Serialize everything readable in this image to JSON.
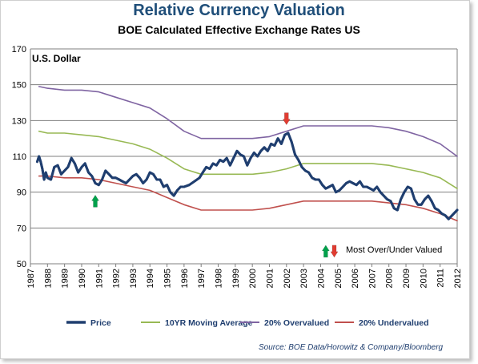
{
  "chart_data": {
    "type": "line",
    "title": "Relative Currency Valuation",
    "subtitle": "BOE Calculated Effective Exchange Rates US",
    "series_label": "U.S. Dollar",
    "ylim": [
      50,
      170
    ],
    "xlim": [
      1987,
      2012
    ],
    "y_ticks": [
      50,
      70,
      90,
      110,
      130,
      150,
      170
    ],
    "x_ticks": [
      "1987",
      "1988",
      "1989",
      "1990",
      "1991",
      "1992",
      "1993",
      "1994",
      "1995",
      "1996",
      "1997",
      "1998",
      "1999",
      "2000",
      "2001",
      "2002",
      "2003",
      "2004",
      "2005",
      "2006",
      "2007",
      "2008",
      "2009",
      "2010",
      "2011",
      "2012"
    ],
    "grid": "horizontal",
    "legend_position": "bottom",
    "series": [
      {
        "name": "Price",
        "color": "#1f3e6f",
        "points": [
          [
            1987.4,
            107
          ],
          [
            1987.5,
            110
          ],
          [
            1987.6,
            107
          ],
          [
            1987.7,
            103
          ],
          [
            1987.8,
            97
          ],
          [
            1987.9,
            101
          ],
          [
            1988.0,
            98
          ],
          [
            1988.2,
            97
          ],
          [
            1988.4,
            104
          ],
          [
            1988.6,
            105
          ],
          [
            1988.8,
            100
          ],
          [
            1989.0,
            102
          ],
          [
            1989.2,
            104
          ],
          [
            1989.4,
            109
          ],
          [
            1989.6,
            106
          ],
          [
            1989.8,
            101
          ],
          [
            1990.0,
            104
          ],
          [
            1990.2,
            106
          ],
          [
            1990.4,
            101
          ],
          [
            1990.6,
            99
          ],
          [
            1990.8,
            95
          ],
          [
            1991.0,
            94
          ],
          [
            1991.2,
            97
          ],
          [
            1991.4,
            102
          ],
          [
            1991.6,
            100
          ],
          [
            1991.8,
            98
          ],
          [
            1992.0,
            98
          ],
          [
            1992.2,
            97
          ],
          [
            1992.4,
            96
          ],
          [
            1992.6,
            95
          ],
          [
            1992.8,
            97
          ],
          [
            1993.0,
            99
          ],
          [
            1993.2,
            100
          ],
          [
            1993.4,
            98
          ],
          [
            1993.6,
            95
          ],
          [
            1993.8,
            97
          ],
          [
            1994.0,
            101
          ],
          [
            1994.2,
            100
          ],
          [
            1994.4,
            97
          ],
          [
            1994.6,
            97
          ],
          [
            1994.8,
            93
          ],
          [
            1995.0,
            94
          ],
          [
            1995.2,
            90
          ],
          [
            1995.4,
            88
          ],
          [
            1995.6,
            91
          ],
          [
            1995.8,
            93
          ],
          [
            1996.0,
            93
          ],
          [
            1996.3,
            94
          ],
          [
            1996.6,
            96
          ],
          [
            1996.9,
            98
          ],
          [
            1997.1,
            101
          ],
          [
            1997.3,
            104
          ],
          [
            1997.5,
            103
          ],
          [
            1997.7,
            106
          ],
          [
            1997.9,
            105
          ],
          [
            1998.1,
            108
          ],
          [
            1998.3,
            107
          ],
          [
            1998.5,
            109
          ],
          [
            1998.7,
            105
          ],
          [
            1998.9,
            109
          ],
          [
            1999.1,
            113
          ],
          [
            1999.3,
            111
          ],
          [
            1999.5,
            110
          ],
          [
            1999.7,
            105
          ],
          [
            1999.9,
            109
          ],
          [
            2000.1,
            112
          ],
          [
            2000.3,
            110
          ],
          [
            2000.5,
            113
          ],
          [
            2000.7,
            115
          ],
          [
            2000.9,
            113
          ],
          [
            2001.1,
            117
          ],
          [
            2001.3,
            116
          ],
          [
            2001.5,
            120
          ],
          [
            2001.7,
            117
          ],
          [
            2001.9,
            122
          ],
          [
            2002.1,
            123
          ],
          [
            2002.3,
            118
          ],
          [
            2002.5,
            111
          ],
          [
            2002.7,
            108
          ],
          [
            2002.9,
            104
          ],
          [
            2003.1,
            102
          ],
          [
            2003.3,
            101
          ],
          [
            2003.5,
            98
          ],
          [
            2003.7,
            97
          ],
          [
            2003.9,
            97
          ],
          [
            2004.1,
            94
          ],
          [
            2004.3,
            92
          ],
          [
            2004.5,
            93
          ],
          [
            2004.7,
            94
          ],
          [
            2004.9,
            90
          ],
          [
            2005.1,
            91
          ],
          [
            2005.3,
            93
          ],
          [
            2005.5,
            95
          ],
          [
            2005.7,
            96
          ],
          [
            2005.9,
            95
          ],
          [
            2006.1,
            94
          ],
          [
            2006.3,
            96
          ],
          [
            2006.5,
            93
          ],
          [
            2006.7,
            93
          ],
          [
            2006.9,
            92
          ],
          [
            2007.1,
            91
          ],
          [
            2007.3,
            93
          ],
          [
            2007.5,
            90
          ],
          [
            2007.7,
            88
          ],
          [
            2007.9,
            86
          ],
          [
            2008.1,
            85
          ],
          [
            2008.3,
            81
          ],
          [
            2008.5,
            80
          ],
          [
            2008.7,
            86
          ],
          [
            2008.9,
            90
          ],
          [
            2009.1,
            93
          ],
          [
            2009.3,
            92
          ],
          [
            2009.5,
            86
          ],
          [
            2009.7,
            83
          ],
          [
            2009.9,
            83
          ],
          [
            2010.1,
            86
          ],
          [
            2010.3,
            88
          ],
          [
            2010.5,
            85
          ],
          [
            2010.7,
            81
          ],
          [
            2010.9,
            80
          ],
          [
            2011.1,
            78
          ],
          [
            2011.3,
            77
          ],
          [
            2011.5,
            75
          ],
          [
            2011.7,
            77
          ],
          [
            2011.9,
            79
          ],
          [
            2012.0,
            80
          ]
        ]
      },
      {
        "name": "10YR Moving Average",
        "color": "#98b954",
        "points": [
          [
            1987.5,
            124
          ],
          [
            1988,
            123
          ],
          [
            1989,
            123
          ],
          [
            1990,
            122
          ],
          [
            1991,
            121
          ],
          [
            1992,
            119
          ],
          [
            1993,
            117
          ],
          [
            1994,
            114
          ],
          [
            1995,
            109
          ],
          [
            1996,
            103
          ],
          [
            1997,
            100
          ],
          [
            1998,
            100
          ],
          [
            1999,
            100
          ],
          [
            2000,
            100
          ],
          [
            2001,
            101
          ],
          [
            2002,
            103
          ],
          [
            2003,
            106
          ],
          [
            2004,
            106
          ],
          [
            2005,
            106
          ],
          [
            2006,
            106
          ],
          [
            2007,
            106
          ],
          [
            2008,
            105
          ],
          [
            2009,
            103
          ],
          [
            2010,
            101
          ],
          [
            2011,
            98
          ],
          [
            2012,
            92
          ]
        ]
      },
      {
        "name": "20% Overvalued",
        "color": "#7f64a2",
        "points": [
          [
            1987.5,
            149
          ],
          [
            1988,
            148
          ],
          [
            1989,
            147
          ],
          [
            1990,
            147
          ],
          [
            1991,
            146
          ],
          [
            1992,
            143
          ],
          [
            1993,
            140
          ],
          [
            1994,
            137
          ],
          [
            1995,
            131
          ],
          [
            1996,
            124
          ],
          [
            1997,
            120
          ],
          [
            1998,
            120
          ],
          [
            1999,
            120
          ],
          [
            2000,
            120
          ],
          [
            2001,
            121
          ],
          [
            2002,
            124
          ],
          [
            2003,
            127
          ],
          [
            2004,
            127
          ],
          [
            2005,
            127
          ],
          [
            2006,
            127
          ],
          [
            2007,
            127
          ],
          [
            2008,
            126
          ],
          [
            2009,
            124
          ],
          [
            2010,
            121
          ],
          [
            2011,
            117
          ],
          [
            2012,
            110
          ]
        ]
      },
      {
        "name": "20% Undervalued",
        "color": "#c0504d",
        "points": [
          [
            1987.5,
            99
          ],
          [
            1988,
            99
          ],
          [
            1989,
            98
          ],
          [
            1990,
            98
          ],
          [
            1991,
            97
          ],
          [
            1992,
            95
          ],
          [
            1993,
            93
          ],
          [
            1994,
            91
          ],
          [
            1995,
            87
          ],
          [
            1996,
            83
          ],
          [
            1997,
            80
          ],
          [
            1998,
            80
          ],
          [
            1999,
            80
          ],
          [
            2000,
            80
          ],
          [
            2001,
            81
          ],
          [
            2002,
            83
          ],
          [
            2003,
            85
          ],
          [
            2004,
            85
          ],
          [
            2005,
            85
          ],
          [
            2006,
            85
          ],
          [
            2007,
            85
          ],
          [
            2008,
            84
          ],
          [
            2009,
            83
          ],
          [
            2010,
            81
          ],
          [
            2011,
            78
          ],
          [
            2012,
            74
          ]
        ]
      }
    ],
    "markers": [
      {
        "kind": "undervalued",
        "direction": "up",
        "color": "#00a14b",
        "x": 1990.8,
        "y": 85
      },
      {
        "kind": "overvalued",
        "direction": "down",
        "color": "#e03c31",
        "x": 2002.0,
        "y": 131
      }
    ],
    "annotation": "Most Over/Under Valued",
    "annotation_markers": [
      {
        "direction": "up",
        "color": "#00a14b",
        "x": 2004.3,
        "y": 57
      },
      {
        "direction": "down",
        "color": "#e03c31",
        "x": 2004.8,
        "y": 57
      }
    ],
    "source": "Source: BOE Data/Horowitz & Company/Bloomberg"
  }
}
